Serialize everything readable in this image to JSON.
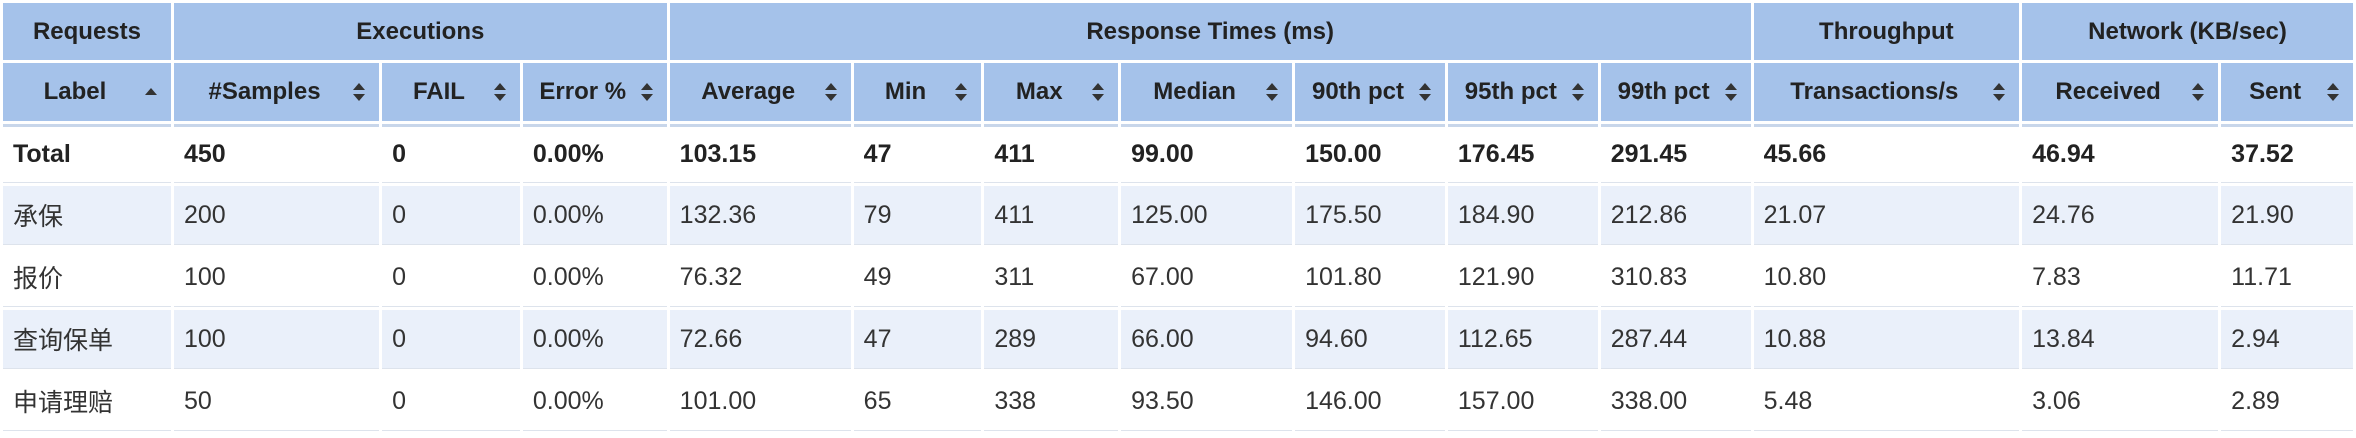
{
  "groups": {
    "requests": "Requests",
    "executions": "Executions",
    "response_times": "Response Times (ms)",
    "throughput": "Throughput",
    "network": "Network (KB/sec)"
  },
  "columns": [
    "Label",
    "#Samples",
    "FAIL",
    "Error %",
    "Average",
    "Min",
    "Max",
    "Median",
    "90th pct",
    "95th pct",
    "99th pct",
    "Transactions/s",
    "Received",
    "Sent"
  ],
  "sort": {
    "column": "Label",
    "direction": "ascending"
  },
  "rows": [
    [
      "Total",
      "450",
      "0",
      "0.00%",
      "103.15",
      "47",
      "411",
      "99.00",
      "150.00",
      "176.45",
      "291.45",
      "45.66",
      "46.94",
      "37.52"
    ],
    [
      "承保",
      "200",
      "0",
      "0.00%",
      "132.36",
      "79",
      "411",
      "125.00",
      "175.50",
      "184.90",
      "212.86",
      "21.07",
      "24.76",
      "21.90"
    ],
    [
      "报价",
      "100",
      "0",
      "0.00%",
      "76.32",
      "49",
      "311",
      "67.00",
      "101.80",
      "121.90",
      "310.83",
      "10.80",
      "7.83",
      "11.71"
    ],
    [
      "查询保单",
      "100",
      "0",
      "0.00%",
      "72.66",
      "47",
      "289",
      "66.00",
      "94.60",
      "112.65",
      "287.44",
      "10.88",
      "13.84",
      "2.94"
    ],
    [
      "申请理赔",
      "50",
      "0",
      "0.00%",
      "101.00",
      "65",
      "338",
      "93.50",
      "146.00",
      "157.00",
      "338.00",
      "5.48",
      "3.06",
      "2.89"
    ]
  ],
  "colors": {
    "header_bg": "#a5c2ea",
    "row_alt_bg": "#eaf0fa",
    "row_bg": "#ffffff"
  }
}
